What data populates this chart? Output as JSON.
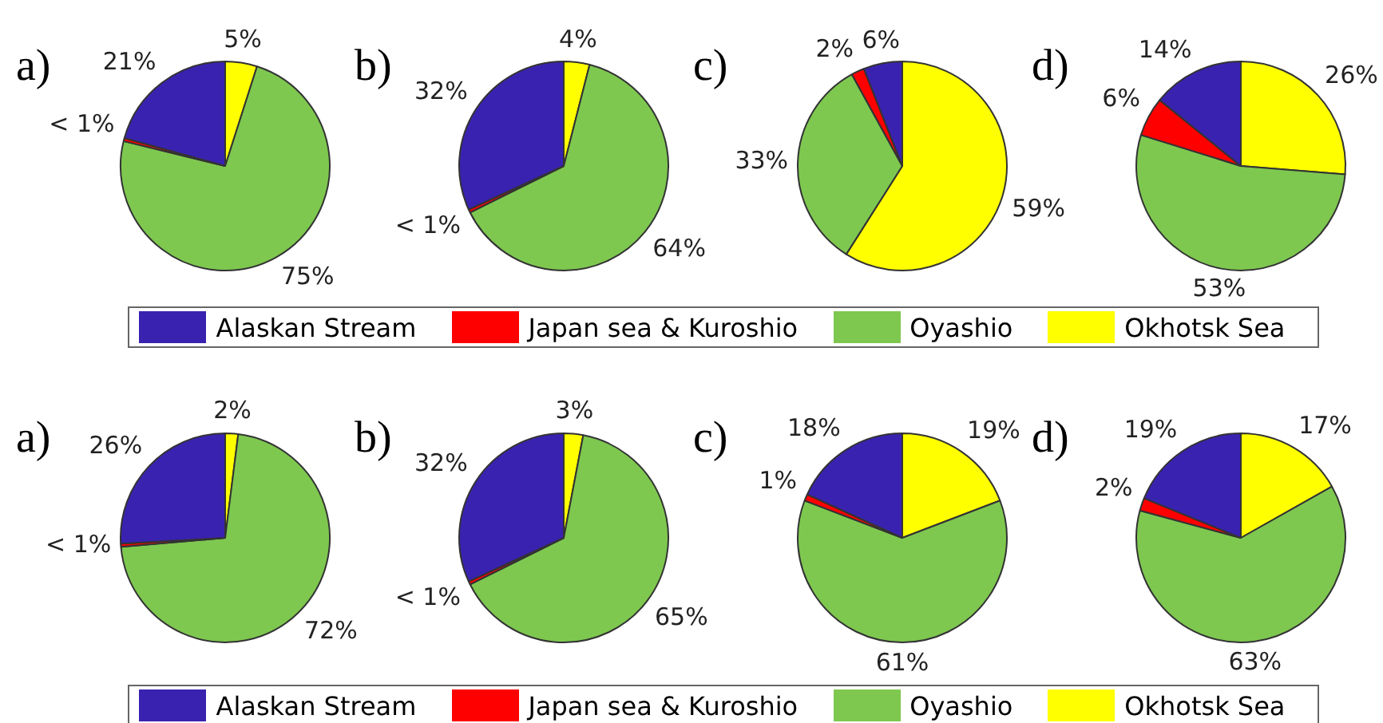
{
  "chart_data": [
    {
      "type": "pie",
      "title": "a)",
      "categories": [
        "Alaskan Stream",
        "Japan sea & Kuroshio",
        "Oyashio",
        "Okhotsk Sea"
      ],
      "values": [
        21,
        0.5,
        75,
        5
      ],
      "value_labels": [
        "21%",
        "< 1%",
        "75%",
        "5%"
      ],
      "colors": [
        "#3a22b0",
        "#ff0000",
        "#7ec850",
        "#ffff00"
      ],
      "legend": "bottom"
    },
    {
      "type": "pie",
      "title": "b)",
      "categories": [
        null,
        null,
        null,
        null
      ],
      "values": [
        32,
        0.5,
        64,
        4
      ],
      "value_labels": [
        "32%",
        "< 1%",
        "64%",
        "4%"
      ],
      "colors": [
        "#3a22b0",
        "#ff0000",
        "#7ec850",
        "#ffff00"
      ]
    },
    {
      "type": "pie",
      "title": "c)",
      "categories": [
        null,
        null,
        null,
        null
      ],
      "values": [
        6,
        2,
        33,
        59
      ],
      "value_labels": [
        "6%",
        "2%",
        "33%",
        "59%"
      ],
      "colors": [
        "#3a22b0",
        "#ff0000",
        "#7ec850",
        "#ffff00"
      ]
    },
    {
      "type": "pie",
      "title": "d)",
      "categories": [
        null,
        null,
        null,
        null
      ],
      "values": [
        14,
        6,
        53,
        26
      ],
      "value_labels": [
        "14%",
        "6%",
        "53%",
        "26%"
      ],
      "colors": [
        "#3a22b0",
        "#ff0000",
        "#7ec850",
        "#ffff00"
      ]
    },
    {
      "type": "pie",
      "title": "a)",
      "categories": [
        "Alaskan Stream",
        "Japan sea & Kuroshio",
        "Oyashio",
        "Okhotsk Sea"
      ],
      "values": [
        26,
        0.5,
        72,
        2
      ],
      "value_labels": [
        "26%",
        "< 1%",
        "72%",
        "2%"
      ],
      "colors": [
        "#3a22b0",
        "#ff0000",
        "#7ec850",
        "#ffff00"
      ],
      "legend": "bottom"
    },
    {
      "type": "pie",
      "title": "b)",
      "categories": [
        null,
        null,
        null,
        null
      ],
      "values": [
        32,
        0.5,
        65,
        3
      ],
      "value_labels": [
        "32%",
        "< 1%",
        "65%",
        "3%"
      ],
      "colors": [
        "#3a22b0",
        "#ff0000",
        "#7ec850",
        "#ffff00"
      ]
    },
    {
      "type": "pie",
      "title": "c)",
      "categories": [
        null,
        null,
        null,
        null
      ],
      "values": [
        18,
        1,
        61,
        19
      ],
      "value_labels": [
        "18%",
        "1%",
        "61%",
        "19%"
      ],
      "colors": [
        "#3a22b0",
        "#ff0000",
        "#7ec850",
        "#ffff00"
      ]
    },
    {
      "type": "pie",
      "title": "d)",
      "categories": [
        null,
        null,
        null,
        null
      ],
      "values": [
        19,
        2,
        63,
        17
      ],
      "value_labels": [
        "19%",
        "2%",
        "63%",
        "17%"
      ],
      "colors": [
        "#3a22b0",
        "#ff0000",
        "#7ec850",
        "#ffff00"
      ]
    }
  ]
}
